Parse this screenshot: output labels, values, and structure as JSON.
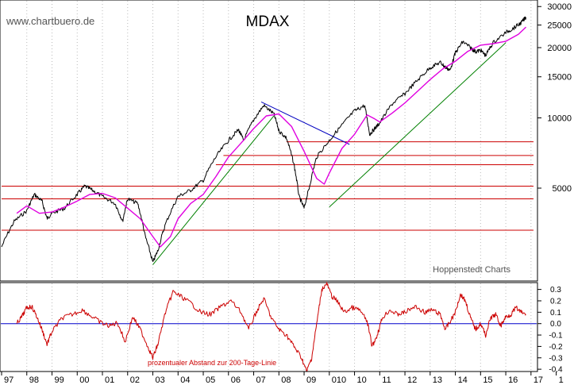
{
  "watermark": "www.chartbuero.de",
  "source": "Hoppenstedt Charts",
  "chart_data": [
    {
      "type": "line",
      "title": "MDAX",
      "scale": "log",
      "ylim": [
        2000,
        32000
      ],
      "y_ticks": [
        {
          "value": 30000,
          "label": "30000"
        },
        {
          "value": 25000,
          "label": "25000"
        },
        {
          "value": 20000,
          "label": "20000"
        },
        {
          "value": 15000,
          "label": "15000"
        },
        {
          "value": 10000,
          "label": "10000"
        },
        {
          "value": 5000,
          "label": "5000"
        }
      ],
      "x_ticks": [
        "97",
        "98",
        "99",
        "00",
        "01",
        "02",
        "03",
        "04",
        "05",
        "06",
        "07",
        "08",
        "09",
        "010",
        "10",
        "11",
        "12",
        "13",
        "14",
        "15",
        "16",
        "17",
        "1"
      ],
      "series": [
        {
          "color": "#000000",
          "x": [
            1997.0,
            1997.5,
            1998.0,
            1998.3,
            1998.6,
            1998.8,
            1999.0,
            1999.5,
            2000.0,
            2000.3,
            2000.6,
            2001.0,
            2001.5,
            2001.8,
            2002.0,
            2002.4,
            2002.7,
            2003.0,
            2003.2,
            2003.5,
            2004.0,
            2004.5,
            2005.0,
            2005.5,
            2006.0,
            2006.4,
            2006.6,
            2007.0,
            2007.4,
            2007.8,
            2008.0,
            2008.3,
            2008.6,
            2008.8,
            2009.0,
            2009.2,
            2009.5,
            2010.0,
            2010.5,
            2011.0,
            2011.4,
            2011.6,
            2011.8,
            2012.0,
            2012.5,
            2013.0,
            2013.5,
            2014.0,
            2014.4,
            2014.6,
            2014.8,
            2015.0,
            2015.3,
            2015.6,
            2015.8,
            2016.0,
            2016.2,
            2016.5,
            2017.0,
            2017.3,
            2017.6,
            2017.8
          ],
          "values": [
            2800,
            3600,
            4000,
            4700,
            4400,
            3700,
            3900,
            4100,
            4700,
            5100,
            4900,
            4600,
            4300,
            3600,
            4500,
            4300,
            3100,
            2400,
            2700,
            3500,
            4600,
            4900,
            5400,
            6800,
            8000,
            8900,
            8000,
            9800,
            11300,
            10400,
            8800,
            8200,
            6300,
            4600,
            4100,
            5000,
            6800,
            8000,
            9300,
            10700,
            11300,
            8500,
            9000,
            9500,
            11500,
            12700,
            14500,
            16400,
            17300,
            16500,
            16000,
            19000,
            21200,
            20000,
            19200,
            19500,
            18500,
            21000,
            23200,
            24200,
            25500,
            27000
          ]
        },
        {
          "color": "#e000e0",
          "x": [
            1997.6,
            1998.0,
            1998.5,
            1999.0,
            1999.5,
            2000.0,
            2000.5,
            2001.0,
            2001.5,
            2002.0,
            2002.5,
            2003.0,
            2003.3,
            2003.7,
            2004.0,
            2004.5,
            2005.0,
            2005.5,
            2006.0,
            2006.5,
            2007.0,
            2007.5,
            2008.0,
            2008.5,
            2009.0,
            2009.5,
            2009.8,
            2010.0,
            2010.5,
            2011.0,
            2011.5,
            2011.8,
            2012.0,
            2012.5,
            2013.0,
            2013.5,
            2014.0,
            2014.5,
            2015.0,
            2015.5,
            2016.0,
            2016.5,
            2017.0,
            2017.5,
            2017.8
          ],
          "values": [
            3900,
            4200,
            3900,
            3950,
            4150,
            4400,
            4700,
            4750,
            4550,
            4100,
            3700,
            3100,
            2800,
            3100,
            3700,
            4300,
            4700,
            5600,
            6800,
            7800,
            9000,
            10200,
            10400,
            9200,
            7200,
            5500,
            5200,
            5800,
            7400,
            8500,
            10300,
            9900,
            9600,
            10500,
            11600,
            13000,
            14600,
            16200,
            17500,
            19300,
            20500,
            20800,
            21300,
            22800,
            24500
          ]
        }
      ],
      "trendlines": [
        {
          "color": "#008000",
          "x": [
            2003.0,
            2007.8
          ],
          "values": [
            2350,
            10200
          ]
        },
        {
          "color": "#008000",
          "x": [
            2010.0,
            2017.0
          ],
          "values": [
            4150,
            21000
          ]
        },
        {
          "color": "#0000c0",
          "x": [
            2007.3,
            2010.8
          ],
          "values": [
            11700,
            7700
          ]
        }
      ],
      "hlines": [
        {
          "color": "#cc0000",
          "value": 5100,
          "from": 1997.0,
          "to": 2018.1
        },
        {
          "color": "#cc0000",
          "value": 4500,
          "from": 1997.0,
          "to": 2018.1
        },
        {
          "color": "#cc0000",
          "value": 3300,
          "from": 1997.0,
          "to": 2018.1
        },
        {
          "color": "#cc0000",
          "value": 7900,
          "from": 2008.3,
          "to": 2018.1
        },
        {
          "color": "#cc0000",
          "value": 6900,
          "from": 2005.8,
          "to": 2018.1
        },
        {
          "color": "#cc0000",
          "value": 6300,
          "from": 2005.5,
          "to": 2018.1
        }
      ]
    },
    {
      "type": "line",
      "caption": "prozentualer Abstand zur 200-Tage-Linie",
      "ylim": [
        -0.42,
        0.36
      ],
      "y_ticks": [
        {
          "value": 0.3,
          "label": "0.3"
        },
        {
          "value": 0.2,
          "label": "0.2"
        },
        {
          "value": 0.1,
          "label": "0.1"
        },
        {
          "value": 0.0,
          "label": "0.0"
        },
        {
          "value": -0.1,
          "label": "-0.1"
        },
        {
          "value": -0.2,
          "label": "-0.2"
        },
        {
          "value": -0.3,
          "label": "-0.3"
        },
        {
          "value": -0.4,
          "label": "-0.4"
        }
      ],
      "zero_line_color": "#0000cc",
      "series": [
        {
          "color": "#cc0000",
          "x": [
            1997.6,
            1997.8,
            1998.0,
            1998.2,
            1998.4,
            1998.6,
            1998.8,
            1999.0,
            1999.4,
            1999.8,
            2000.2,
            2000.6,
            2001.0,
            2001.3,
            2001.6,
            2001.9,
            2002.2,
            2002.5,
            2002.8,
            2003.0,
            2003.2,
            2003.5,
            2003.8,
            2004.1,
            2004.5,
            2004.9,
            2005.3,
            2005.7,
            2006.1,
            2006.5,
            2006.8,
            2007.1,
            2007.4,
            2007.7,
            2008.0,
            2008.3,
            2008.6,
            2008.9,
            2009.1,
            2009.3,
            2009.5,
            2009.7,
            2009.9,
            2010.1,
            2010.3,
            2010.6,
            2010.9,
            2011.2,
            2011.5,
            2011.7,
            2011.9,
            2012.1,
            2012.4,
            2012.7,
            2013.0,
            2013.4,
            2013.8,
            2014.1,
            2014.4,
            2014.6,
            2014.8,
            2015.0,
            2015.2,
            2015.4,
            2015.6,
            2015.8,
            2016.0,
            2016.2,
            2016.4,
            2016.6,
            2016.8,
            2017.0,
            2017.2,
            2017.4,
            2017.6,
            2017.8
          ],
          "values": [
            0.0,
            0.06,
            0.14,
            0.15,
            0.06,
            -0.05,
            -0.18,
            -0.07,
            0.05,
            0.08,
            0.12,
            0.06,
            0.0,
            -0.02,
            0.01,
            -0.16,
            0.06,
            -0.05,
            -0.2,
            -0.3,
            -0.18,
            0.1,
            0.28,
            0.24,
            0.18,
            0.1,
            0.08,
            0.15,
            0.2,
            0.1,
            -0.05,
            0.1,
            0.22,
            0.05,
            -0.05,
            -0.1,
            -0.2,
            -0.3,
            -0.42,
            -0.3,
            0.0,
            0.3,
            0.35,
            0.24,
            0.2,
            0.1,
            0.14,
            0.12,
            0.02,
            -0.2,
            -0.1,
            0.05,
            0.12,
            0.08,
            0.1,
            0.15,
            0.1,
            0.12,
            0.08,
            -0.05,
            0.02,
            0.1,
            0.26,
            0.2,
            0.05,
            -0.05,
            0.0,
            -0.1,
            0.05,
            0.08,
            -0.02,
            0.06,
            0.08,
            0.14,
            0.1,
            0.08
          ]
        }
      ]
    }
  ]
}
